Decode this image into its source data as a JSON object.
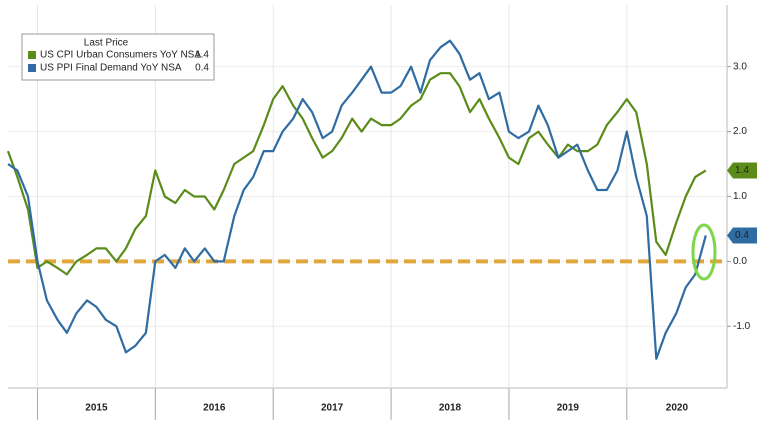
{
  "chart_data": {
    "type": "line",
    "legend_title": "Last Price",
    "x": [
      2014.75,
      2014.83,
      2014.92,
      2015,
      2015.08,
      2015.17,
      2015.25,
      2015.33,
      2015.42,
      2015.5,
      2015.58,
      2015.67,
      2015.75,
      2015.83,
      2015.92,
      2016,
      2016.08,
      2016.17,
      2016.25,
      2016.33,
      2016.42,
      2016.5,
      2016.58,
      2016.67,
      2016.75,
      2016.83,
      2016.92,
      2017,
      2017.08,
      2017.17,
      2017.25,
      2017.33,
      2017.42,
      2017.5,
      2017.58,
      2017.67,
      2017.75,
      2017.83,
      2017.92,
      2018,
      2018.08,
      2018.17,
      2018.25,
      2018.33,
      2018.42,
      2018.5,
      2018.58,
      2018.67,
      2018.75,
      2018.83,
      2018.92,
      2019,
      2019.08,
      2019.17,
      2019.25,
      2019.33,
      2019.42,
      2019.5,
      2019.58,
      2019.67,
      2019.75,
      2019.83,
      2019.92,
      2020,
      2020.08,
      2020.17,
      2020.25,
      2020.33,
      2020.42,
      2020.5,
      2020.58,
      2020.67
    ],
    "series": [
      {
        "name": "US CPI Urban Consumers YoY NSA",
        "color": "#5b8c1a",
        "last_label": "1.4",
        "values": [
          1.7,
          1.3,
          0.8,
          -0.1,
          0.0,
          -0.1,
          -0.2,
          0.0,
          0.1,
          0.2,
          0.2,
          0.0,
          0.2,
          0.5,
          0.7,
          1.4,
          1.0,
          0.9,
          1.1,
          1.0,
          1.0,
          0.8,
          1.1,
          1.5,
          1.6,
          1.7,
          2.1,
          2.5,
          2.7,
          2.4,
          2.2,
          1.9,
          1.6,
          1.7,
          1.9,
          2.2,
          2.0,
          2.2,
          2.1,
          2.1,
          2.2,
          2.4,
          2.5,
          2.8,
          2.9,
          2.9,
          2.7,
          2.3,
          2.5,
          2.2,
          1.9,
          1.6,
          1.5,
          1.9,
          2.0,
          1.8,
          1.6,
          1.8,
          1.7,
          1.7,
          1.8,
          2.1,
          2.3,
          2.5,
          2.3,
          1.5,
          0.3,
          0.1,
          0.6,
          1.0,
          1.3,
          1.4
        ]
      },
      {
        "name": "US PPI Final Demand YoY NSA",
        "color": "#2f6ca3",
        "last_label": "0.4",
        "values": [
          1.5,
          1.4,
          1.0,
          0.0,
          -0.6,
          -0.9,
          -1.1,
          -0.8,
          -0.6,
          -0.7,
          -0.9,
          -1.0,
          -1.4,
          -1.3,
          -1.1,
          0.0,
          0.1,
          -0.1,
          0.2,
          0.0,
          0.2,
          0.0,
          0.0,
          0.7,
          1.1,
          1.3,
          1.7,
          1.7,
          2.0,
          2.2,
          2.5,
          2.3,
          1.9,
          2.0,
          2.4,
          2.6,
          2.8,
          3.0,
          2.6,
          2.6,
          2.7,
          3.0,
          2.6,
          3.1,
          3.3,
          3.4,
          3.2,
          2.8,
          2.9,
          2.5,
          2.6,
          2.0,
          1.9,
          2.0,
          2.4,
          2.1,
          1.6,
          1.7,
          1.8,
          1.4,
          1.1,
          1.1,
          1.4,
          2.0,
          1.3,
          0.7,
          -1.5,
          -1.1,
          -0.8,
          -0.4,
          -0.2,
          0.4
        ]
      }
    ],
    "xlim": [
      2014.75,
      2020.85
    ],
    "xticks": [
      {
        "value": 2015,
        "label": "2015"
      },
      {
        "value": 2016,
        "label": "2016"
      },
      {
        "value": 2017,
        "label": "2017"
      },
      {
        "value": 2018,
        "label": "2018"
      },
      {
        "value": 2019,
        "label": "2019"
      },
      {
        "value": 2020,
        "label": "2020"
      }
    ],
    "ylim": [
      -1.95,
      3.95
    ],
    "yticks": [
      {
        "value": -1,
        "label": "-1.0"
      },
      {
        "value": 0,
        "label": "0.0"
      },
      {
        "value": 1,
        "label": "1.0"
      },
      {
        "value": 2,
        "label": "2.0"
      },
      {
        "value": 3,
        "label": "3.0"
      }
    ],
    "reference_line": {
      "value": 0,
      "color": "#e0a73a"
    },
    "grid": true,
    "legend": "upper left"
  }
}
